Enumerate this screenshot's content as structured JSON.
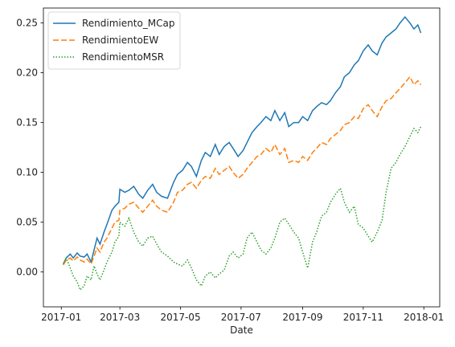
{
  "chart_data": {
    "type": "line",
    "title": "",
    "xlabel": "Date",
    "ylabel": "",
    "x_type": "date",
    "xlim": [
      "2016-12-14",
      "2018-01-17"
    ],
    "ylim": [
      -0.035,
      0.265
    ],
    "xticks": [
      "2017-01-01",
      "2017-03-01",
      "2017-05-01",
      "2017-07-01",
      "2017-09-01",
      "2017-11-01",
      "2018-01-01"
    ],
    "xtick_labels": [
      "2017-01",
      "2017-03",
      "2017-05",
      "2017-07",
      "2017-09",
      "2017-11",
      "2018-01"
    ],
    "yticks": [
      0.0,
      0.05,
      0.1,
      0.15,
      0.2,
      0.25
    ],
    "ytick_labels": [
      "0.00",
      "0.05",
      "0.10",
      "0.15",
      "0.20",
      "0.25"
    ],
    "grid": false,
    "legend_position": "top-left",
    "series": [
      {
        "name": "Rendimiento_MCap",
        "color": "#1f77b4",
        "style": "solid",
        "points": [
          [
            "2017-01-03",
            0.008
          ],
          [
            "2017-01-06",
            0.014
          ],
          [
            "2017-01-10",
            0.018
          ],
          [
            "2017-01-13",
            0.014
          ],
          [
            "2017-01-17",
            0.019
          ],
          [
            "2017-01-20",
            0.016
          ],
          [
            "2017-01-24",
            0.015
          ],
          [
            "2017-01-27",
            0.018
          ],
          [
            "2017-01-31",
            0.01
          ],
          [
            "2017-02-03",
            0.022
          ],
          [
            "2017-02-06",
            0.034
          ],
          [
            "2017-02-09",
            0.028
          ],
          [
            "2017-02-13",
            0.04
          ],
          [
            "2017-02-16",
            0.048
          ],
          [
            "2017-02-21",
            0.062
          ],
          [
            "2017-02-24",
            0.066
          ],
          [
            "2017-02-28",
            0.07
          ],
          [
            "2017-03-01",
            0.083
          ],
          [
            "2017-03-06",
            0.08
          ],
          [
            "2017-03-10",
            0.082
          ],
          [
            "2017-03-15",
            0.086
          ],
          [
            "2017-03-20",
            0.078
          ],
          [
            "2017-03-24",
            0.074
          ],
          [
            "2017-03-29",
            0.082
          ],
          [
            "2017-04-03",
            0.088
          ],
          [
            "2017-04-07",
            0.08
          ],
          [
            "2017-04-12",
            0.076
          ],
          [
            "2017-04-18",
            0.074
          ],
          [
            "2017-04-24",
            0.09
          ],
          [
            "2017-04-28",
            0.098
          ],
          [
            "2017-05-03",
            0.102
          ],
          [
            "2017-05-08",
            0.11
          ],
          [
            "2017-05-12",
            0.106
          ],
          [
            "2017-05-17",
            0.096
          ],
          [
            "2017-05-22",
            0.112
          ],
          [
            "2017-05-26",
            0.12
          ],
          [
            "2017-05-31",
            0.116
          ],
          [
            "2017-06-05",
            0.128
          ],
          [
            "2017-06-09",
            0.118
          ],
          [
            "2017-06-14",
            0.126
          ],
          [
            "2017-06-19",
            0.13
          ],
          [
            "2017-06-23",
            0.124
          ],
          [
            "2017-06-28",
            0.116
          ],
          [
            "2017-07-03",
            0.122
          ],
          [
            "2017-07-07",
            0.13
          ],
          [
            "2017-07-12",
            0.14
          ],
          [
            "2017-07-17",
            0.146
          ],
          [
            "2017-07-21",
            0.15
          ],
          [
            "2017-07-26",
            0.156
          ],
          [
            "2017-07-31",
            0.152
          ],
          [
            "2017-08-04",
            0.162
          ],
          [
            "2017-08-09",
            0.152
          ],
          [
            "2017-08-14",
            0.16
          ],
          [
            "2017-08-18",
            0.146
          ],
          [
            "2017-08-23",
            0.15
          ],
          [
            "2017-08-28",
            0.15
          ],
          [
            "2017-09-01",
            0.156
          ],
          [
            "2017-09-06",
            0.152
          ],
          [
            "2017-09-11",
            0.162
          ],
          [
            "2017-09-15",
            0.166
          ],
          [
            "2017-09-20",
            0.17
          ],
          [
            "2017-09-25",
            0.168
          ],
          [
            "2017-09-29",
            0.172
          ],
          [
            "2017-10-04",
            0.18
          ],
          [
            "2017-10-09",
            0.186
          ],
          [
            "2017-10-13",
            0.196
          ],
          [
            "2017-10-18",
            0.2
          ],
          [
            "2017-10-23",
            0.208
          ],
          [
            "2017-10-27",
            0.212
          ],
          [
            "2017-11-01",
            0.222
          ],
          [
            "2017-11-06",
            0.228
          ],
          [
            "2017-11-10",
            0.222
          ],
          [
            "2017-11-15",
            0.218
          ],
          [
            "2017-11-20",
            0.23
          ],
          [
            "2017-11-24",
            0.236
          ],
          [
            "2017-11-29",
            0.24
          ],
          [
            "2017-12-04",
            0.244
          ],
          [
            "2017-12-08",
            0.25
          ],
          [
            "2017-12-13",
            0.256
          ],
          [
            "2017-12-18",
            0.25
          ],
          [
            "2017-12-22",
            0.244
          ],
          [
            "2017-12-26",
            0.248
          ],
          [
            "2017-12-29",
            0.24
          ]
        ]
      },
      {
        "name": "RendimientoEW",
        "color": "#ff7f0e",
        "style": "dashed",
        "points": [
          [
            "2017-01-03",
            0.007
          ],
          [
            "2017-01-06",
            0.012
          ],
          [
            "2017-01-10",
            0.014
          ],
          [
            "2017-01-13",
            0.011
          ],
          [
            "2017-01-17",
            0.015
          ],
          [
            "2017-01-20",
            0.012
          ],
          [
            "2017-01-24",
            0.01
          ],
          [
            "2017-01-27",
            0.013
          ],
          [
            "2017-01-31",
            0.008
          ],
          [
            "2017-02-03",
            0.016
          ],
          [
            "2017-02-06",
            0.024
          ],
          [
            "2017-02-09",
            0.02
          ],
          [
            "2017-02-13",
            0.03
          ],
          [
            "2017-02-16",
            0.034
          ],
          [
            "2017-02-21",
            0.044
          ],
          [
            "2017-02-24",
            0.05
          ],
          [
            "2017-02-28",
            0.052
          ],
          [
            "2017-03-01",
            0.062
          ],
          [
            "2017-03-06",
            0.064
          ],
          [
            "2017-03-10",
            0.068
          ],
          [
            "2017-03-15",
            0.07
          ],
          [
            "2017-03-20",
            0.064
          ],
          [
            "2017-03-24",
            0.06
          ],
          [
            "2017-03-29",
            0.066
          ],
          [
            "2017-04-03",
            0.072
          ],
          [
            "2017-04-07",
            0.066
          ],
          [
            "2017-04-12",
            0.062
          ],
          [
            "2017-04-18",
            0.06
          ],
          [
            "2017-04-24",
            0.07
          ],
          [
            "2017-04-28",
            0.08
          ],
          [
            "2017-05-03",
            0.082
          ],
          [
            "2017-05-08",
            0.088
          ],
          [
            "2017-05-12",
            0.09
          ],
          [
            "2017-05-17",
            0.084
          ],
          [
            "2017-05-22",
            0.092
          ],
          [
            "2017-05-26",
            0.096
          ],
          [
            "2017-05-31",
            0.094
          ],
          [
            "2017-06-05",
            0.104
          ],
          [
            "2017-06-09",
            0.098
          ],
          [
            "2017-06-14",
            0.102
          ],
          [
            "2017-06-19",
            0.106
          ],
          [
            "2017-06-23",
            0.1
          ],
          [
            "2017-06-28",
            0.094
          ],
          [
            "2017-07-03",
            0.098
          ],
          [
            "2017-07-07",
            0.104
          ],
          [
            "2017-07-12",
            0.11
          ],
          [
            "2017-07-17",
            0.116
          ],
          [
            "2017-07-21",
            0.118
          ],
          [
            "2017-07-26",
            0.124
          ],
          [
            "2017-07-31",
            0.12
          ],
          [
            "2017-08-04",
            0.128
          ],
          [
            "2017-08-09",
            0.118
          ],
          [
            "2017-08-14",
            0.124
          ],
          [
            "2017-08-18",
            0.11
          ],
          [
            "2017-08-23",
            0.112
          ],
          [
            "2017-08-28",
            0.11
          ],
          [
            "2017-09-01",
            0.116
          ],
          [
            "2017-09-06",
            0.112
          ],
          [
            "2017-09-11",
            0.12
          ],
          [
            "2017-09-15",
            0.124
          ],
          [
            "2017-09-20",
            0.13
          ],
          [
            "2017-09-25",
            0.128
          ],
          [
            "2017-09-29",
            0.134
          ],
          [
            "2017-10-04",
            0.138
          ],
          [
            "2017-10-09",
            0.142
          ],
          [
            "2017-10-13",
            0.148
          ],
          [
            "2017-10-18",
            0.15
          ],
          [
            "2017-10-23",
            0.156
          ],
          [
            "2017-10-27",
            0.154
          ],
          [
            "2017-11-01",
            0.164
          ],
          [
            "2017-11-06",
            0.168
          ],
          [
            "2017-11-10",
            0.162
          ],
          [
            "2017-11-15",
            0.156
          ],
          [
            "2017-11-20",
            0.166
          ],
          [
            "2017-11-24",
            0.172
          ],
          [
            "2017-11-29",
            0.174
          ],
          [
            "2017-12-04",
            0.18
          ],
          [
            "2017-12-08",
            0.184
          ],
          [
            "2017-12-13",
            0.19
          ],
          [
            "2017-12-18",
            0.196
          ],
          [
            "2017-12-22",
            0.188
          ],
          [
            "2017-12-26",
            0.192
          ],
          [
            "2017-12-29",
            0.188
          ]
        ]
      },
      {
        "name": "RendimientoMSR",
        "color": "#2ca02c",
        "style": "dotted",
        "points": [
          [
            "2017-01-03",
            0.008
          ],
          [
            "2017-01-06",
            0.014
          ],
          [
            "2017-01-10",
            0.004
          ],
          [
            "2017-01-13",
            -0.004
          ],
          [
            "2017-01-17",
            -0.01
          ],
          [
            "2017-01-20",
            -0.018
          ],
          [
            "2017-01-24",
            -0.014
          ],
          [
            "2017-01-27",
            -0.004
          ],
          [
            "2017-01-31",
            -0.008
          ],
          [
            "2017-02-03",
            0.006
          ],
          [
            "2017-02-06",
            -0.002
          ],
          [
            "2017-02-09",
            -0.008
          ],
          [
            "2017-02-13",
            0.002
          ],
          [
            "2017-02-16",
            0.01
          ],
          [
            "2017-02-21",
            0.02
          ],
          [
            "2017-02-24",
            0.03
          ],
          [
            "2017-02-28",
            0.036
          ],
          [
            "2017-03-01",
            0.05
          ],
          [
            "2017-03-06",
            0.046
          ],
          [
            "2017-03-10",
            0.054
          ],
          [
            "2017-03-15",
            0.04
          ],
          [
            "2017-03-20",
            0.03
          ],
          [
            "2017-03-24",
            0.026
          ],
          [
            "2017-03-29",
            0.034
          ],
          [
            "2017-04-03",
            0.036
          ],
          [
            "2017-04-07",
            0.028
          ],
          [
            "2017-04-12",
            0.02
          ],
          [
            "2017-04-18",
            0.016
          ],
          [
            "2017-04-24",
            0.01
          ],
          [
            "2017-04-28",
            0.008
          ],
          [
            "2017-05-03",
            0.006
          ],
          [
            "2017-05-08",
            0.012
          ],
          [
            "2017-05-12",
            0.004
          ],
          [
            "2017-05-17",
            -0.008
          ],
          [
            "2017-05-22",
            -0.014
          ],
          [
            "2017-05-26",
            -0.004
          ],
          [
            "2017-05-31",
            0.0
          ],
          [
            "2017-06-05",
            -0.006
          ],
          [
            "2017-06-09",
            -0.002
          ],
          [
            "2017-06-14",
            0.002
          ],
          [
            "2017-06-19",
            0.016
          ],
          [
            "2017-06-23",
            0.02
          ],
          [
            "2017-06-28",
            0.014
          ],
          [
            "2017-07-03",
            0.018
          ],
          [
            "2017-07-07",
            0.034
          ],
          [
            "2017-07-12",
            0.04
          ],
          [
            "2017-07-17",
            0.03
          ],
          [
            "2017-07-21",
            0.022
          ],
          [
            "2017-07-26",
            0.018
          ],
          [
            "2017-07-31",
            0.024
          ],
          [
            "2017-08-04",
            0.034
          ],
          [
            "2017-08-09",
            0.05
          ],
          [
            "2017-08-14",
            0.054
          ],
          [
            "2017-08-18",
            0.048
          ],
          [
            "2017-08-23",
            0.04
          ],
          [
            "2017-08-28",
            0.034
          ],
          [
            "2017-09-01",
            0.02
          ],
          [
            "2017-09-06",
            0.004
          ],
          [
            "2017-09-11",
            0.03
          ],
          [
            "2017-09-15",
            0.04
          ],
          [
            "2017-09-20",
            0.056
          ],
          [
            "2017-09-25",
            0.06
          ],
          [
            "2017-09-29",
            0.07
          ],
          [
            "2017-10-04",
            0.078
          ],
          [
            "2017-10-09",
            0.084
          ],
          [
            "2017-10-13",
            0.07
          ],
          [
            "2017-10-18",
            0.06
          ],
          [
            "2017-10-23",
            0.066
          ],
          [
            "2017-10-27",
            0.048
          ],
          [
            "2017-11-01",
            0.044
          ],
          [
            "2017-11-06",
            0.036
          ],
          [
            "2017-11-10",
            0.03
          ],
          [
            "2017-11-15",
            0.04
          ],
          [
            "2017-11-20",
            0.052
          ],
          [
            "2017-11-24",
            0.08
          ],
          [
            "2017-11-29",
            0.104
          ],
          [
            "2017-12-04",
            0.11
          ],
          [
            "2017-12-08",
            0.118
          ],
          [
            "2017-12-13",
            0.126
          ],
          [
            "2017-12-18",
            0.136
          ],
          [
            "2017-12-22",
            0.144
          ],
          [
            "2017-12-26",
            0.14
          ],
          [
            "2017-12-29",
            0.146
          ]
        ]
      }
    ]
  }
}
